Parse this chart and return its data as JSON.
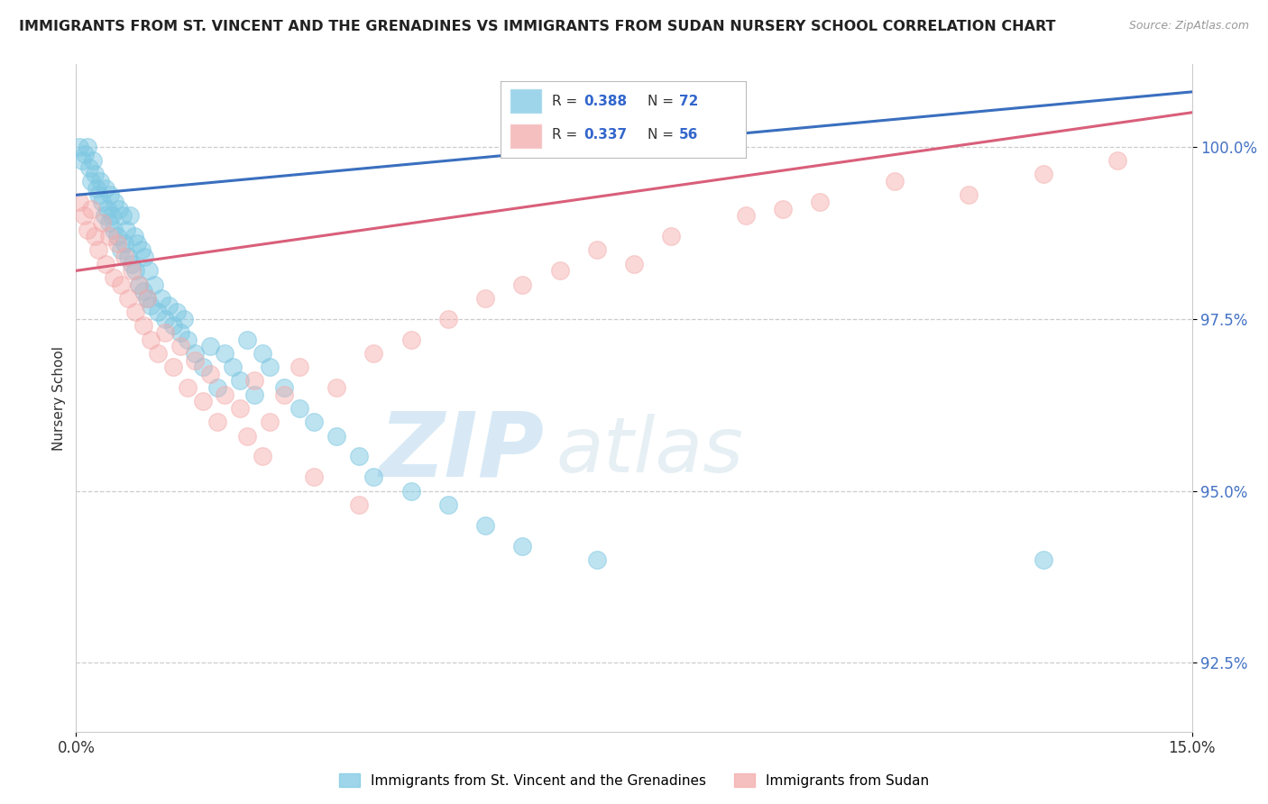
{
  "title": "IMMIGRANTS FROM ST. VINCENT AND THE GRENADINES VS IMMIGRANTS FROM SUDAN NURSERY SCHOOL CORRELATION CHART",
  "source": "Source: ZipAtlas.com",
  "ylabel": "Nursery School",
  "xmin": 0.0,
  "xmax": 15.0,
  "ymin": 91.5,
  "ymax": 101.2,
  "yticks": [
    92.5,
    95.0,
    97.5,
    100.0
  ],
  "ytick_labels": [
    "92.5%",
    "95.0%",
    "97.5%",
    "100.0%"
  ],
  "xticks": [
    0.0,
    15.0
  ],
  "xtick_labels": [
    "0.0%",
    "15.0%"
  ],
  "legend_label1": "Immigrants from St. Vincent and the Grenadines",
  "legend_label2": "Immigrants from Sudan",
  "blue_color": "#7ec8e3",
  "pink_color": "#f4aaaa",
  "blue_line_color": "#3a6fbf",
  "pink_line_color": "#d95f7a",
  "watermark_zip": "ZIP",
  "watermark_atlas": "atlas",
  "blue_scatter_x": [
    0.05,
    0.08,
    0.12,
    0.15,
    0.18,
    0.2,
    0.22,
    0.25,
    0.28,
    0.3,
    0.32,
    0.35,
    0.38,
    0.4,
    0.42,
    0.44,
    0.46,
    0.48,
    0.5,
    0.52,
    0.55,
    0.58,
    0.6,
    0.62,
    0.65,
    0.68,
    0.7,
    0.72,
    0.75,
    0.78,
    0.8,
    0.82,
    0.85,
    0.88,
    0.9,
    0.92,
    0.95,
    0.98,
    1.0,
    1.05,
    1.1,
    1.15,
    1.2,
    1.25,
    1.3,
    1.35,
    1.4,
    1.45,
    1.5,
    1.6,
    1.7,
    1.8,
    1.9,
    2.0,
    2.1,
    2.2,
    2.3,
    2.4,
    2.5,
    2.6,
    2.8,
    3.0,
    3.2,
    3.5,
    3.8,
    4.0,
    4.5,
    5.0,
    5.5,
    6.0,
    7.0,
    13.0
  ],
  "blue_scatter_y": [
    100.0,
    99.8,
    99.9,
    100.0,
    99.7,
    99.5,
    99.8,
    99.6,
    99.4,
    99.3,
    99.5,
    99.2,
    99.0,
    99.4,
    99.1,
    98.9,
    99.3,
    99.0,
    98.8,
    99.2,
    98.7,
    99.1,
    98.5,
    99.0,
    98.6,
    98.8,
    98.4,
    99.0,
    98.3,
    98.7,
    98.2,
    98.6,
    98.0,
    98.5,
    97.9,
    98.4,
    97.8,
    98.2,
    97.7,
    98.0,
    97.6,
    97.8,
    97.5,
    97.7,
    97.4,
    97.6,
    97.3,
    97.5,
    97.2,
    97.0,
    96.8,
    97.1,
    96.5,
    97.0,
    96.8,
    96.6,
    97.2,
    96.4,
    97.0,
    96.8,
    96.5,
    96.2,
    96.0,
    95.8,
    95.5,
    95.2,
    95.0,
    94.8,
    94.5,
    94.2,
    94.0,
    94.0
  ],
  "pink_scatter_x": [
    0.05,
    0.1,
    0.15,
    0.2,
    0.25,
    0.3,
    0.35,
    0.4,
    0.45,
    0.5,
    0.55,
    0.6,
    0.65,
    0.7,
    0.75,
    0.8,
    0.85,
    0.9,
    0.95,
    1.0,
    1.1,
    1.2,
    1.3,
    1.4,
    1.5,
    1.6,
    1.7,
    1.8,
    1.9,
    2.0,
    2.2,
    2.4,
    2.6,
    2.8,
    3.0,
    3.5,
    4.0,
    4.5,
    5.0,
    5.5,
    6.0,
    6.5,
    7.0,
    7.5,
    8.0,
    9.0,
    10.0,
    11.0,
    12.0,
    13.0,
    14.0,
    2.3,
    2.5,
    3.2,
    3.8,
    9.5
  ],
  "pink_scatter_y": [
    99.2,
    99.0,
    98.8,
    99.1,
    98.7,
    98.5,
    98.9,
    98.3,
    98.7,
    98.1,
    98.6,
    98.0,
    98.4,
    97.8,
    98.2,
    97.6,
    98.0,
    97.4,
    97.8,
    97.2,
    97.0,
    97.3,
    96.8,
    97.1,
    96.5,
    96.9,
    96.3,
    96.7,
    96.0,
    96.4,
    96.2,
    96.6,
    96.0,
    96.4,
    96.8,
    96.5,
    97.0,
    97.2,
    97.5,
    97.8,
    98.0,
    98.2,
    98.5,
    98.3,
    98.7,
    99.0,
    99.2,
    99.5,
    99.3,
    99.6,
    99.8,
    95.8,
    95.5,
    95.2,
    94.8,
    99.1
  ],
  "blue_trend_x0": 0.0,
  "blue_trend_x1": 15.0,
  "blue_trend_y0": 99.3,
  "blue_trend_y1": 100.8,
  "pink_trend_x0": 0.0,
  "pink_trend_x1": 15.0,
  "pink_trend_y0": 98.2,
  "pink_trend_y1": 100.5
}
